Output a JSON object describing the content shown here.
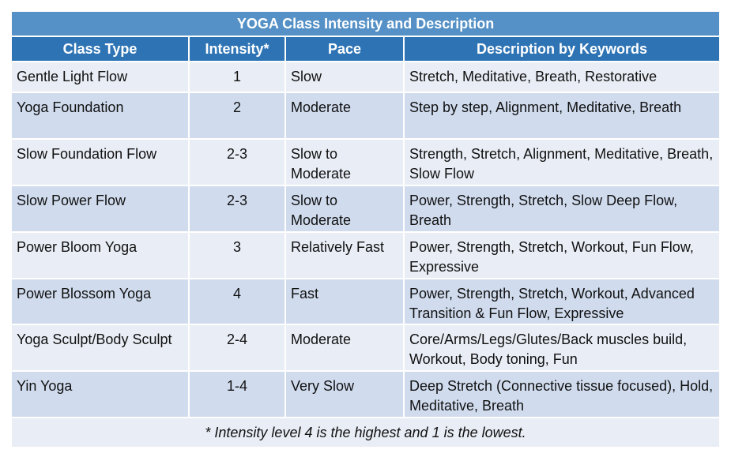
{
  "title": "YOGA Class Intensity and Description",
  "columns": [
    "Class Type",
    "Intensity*",
    "Pace",
    "Description by Keywords"
  ],
  "rows": [
    {
      "class_type": "Gentle Light Flow",
      "intensity": "1",
      "pace": "Slow",
      "description": "Stretch, Meditative, Breath, Restorative"
    },
    {
      "class_type": "Yoga Foundation",
      "intensity": "2",
      "pace": "Moderate",
      "description": "Step by step, Alignment, Meditative, Breath"
    },
    {
      "class_type": "Slow Foundation Flow",
      "intensity": "2-3",
      "pace": "Slow to Moderate",
      "description": "Strength, Stretch, Alignment, Meditative, Breath, Slow Flow"
    },
    {
      "class_type": "Slow Power Flow",
      "intensity": "2-3",
      "pace": "Slow to Moderate",
      "description": "Power, Strength, Stretch, Slow Deep Flow, Breath"
    },
    {
      "class_type": "Power Bloom Yoga",
      "intensity": "3",
      "pace": "Relatively Fast",
      "description": "Power, Strength, Stretch, Workout, Fun Flow, Expressive"
    },
    {
      "class_type": "Power Blossom Yoga",
      "intensity": "4",
      "pace": "Fast",
      "description": "Power, Strength, Stretch, Workout, Advanced Transition &  Fun Flow, Expressive"
    },
    {
      "class_type": "Yoga Sculpt/Body Sculpt",
      "intensity": "2-4",
      "pace": "Moderate",
      "description": "Core/Arms/Legs/Glutes/Back muscles build, Workout, Body toning, Fun"
    },
    {
      "class_type": "Yin Yoga",
      "intensity": "1-4",
      "pace": "Very Slow",
      "description": "Deep Stretch (Connective tissue focused), Hold, Meditative, Breath"
    }
  ],
  "footnote": "* Intensity level 4 is the highest and 1 is the lowest.",
  "colors": {
    "title_bg": "#5591c6",
    "header_bg": "#2e74b5",
    "row_light": "#e9edf5",
    "row_dark": "#d0dcee"
  }
}
